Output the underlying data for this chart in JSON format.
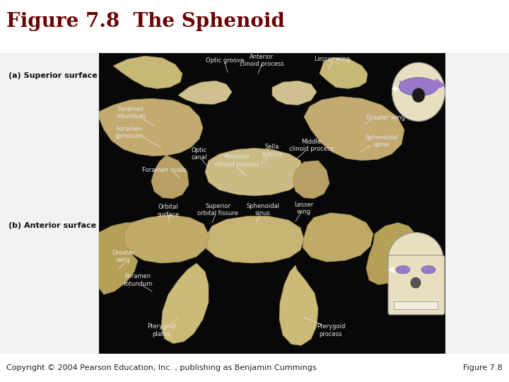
{
  "title": "Figure 7.8  The Sphenoid",
  "title_color": "#6B0000",
  "title_fontsize": 20,
  "background_color": "#f0f0f0",
  "footer_text": "Copyright © 2004 Pearson Education, Inc. , publishing as Benjamin Cummings",
  "footer_right": "Figure 7.8",
  "footer_fontsize": 8,
  "label_a": "(a) Superior surface",
  "label_b": "(b) Anterior surface",
  "label_fontsize": 8,
  "separator_color": "#bbbbbb",
  "photo_bg": "#060606",
  "white_bg": "#f2f2f2",
  "bone_color": "#c8b878",
  "bone_edge": "#a09050",
  "label_color_black": "#111111",
  "label_color_white": "#e8e8e8",
  "fig_width": 7.2,
  "fig_height": 5.4,
  "dpi": 100
}
